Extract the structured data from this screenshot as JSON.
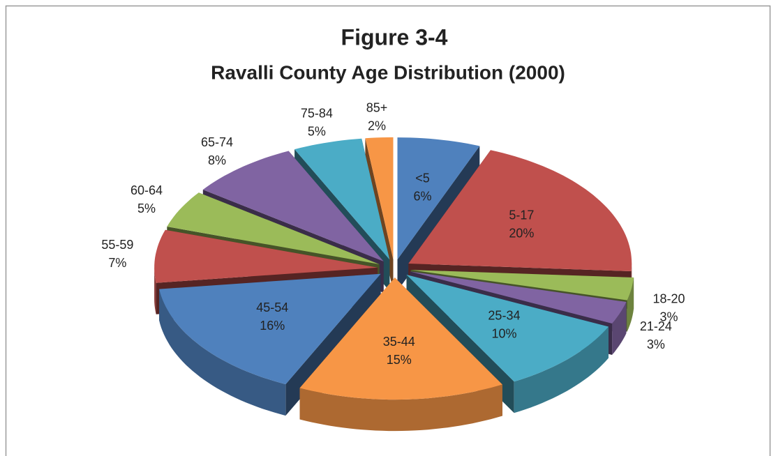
{
  "chart_data": {
    "type": "pie",
    "title": "Figure 3-4",
    "subtitle": "Ravalli County Age Distribution  (2000)",
    "categories": [
      "<5",
      "5-17",
      "18-20",
      "21-24",
      "25-34",
      "35-44",
      "45-54",
      "55-59",
      "60-64",
      "65-74",
      "75-84",
      "85+"
    ],
    "values": [
      6,
      20,
      3,
      3,
      10,
      15,
      16,
      7,
      5,
      8,
      5,
      2
    ],
    "value_labels": [
      "6%",
      "20%",
      "3%",
      "3%",
      "10%",
      "15%",
      "16%",
      "7%",
      "5%",
      "8%",
      "5%",
      "2%"
    ],
    "colors": [
      "#4f81bd",
      "#c0504d",
      "#9bbb59",
      "#8064a2",
      "#4bacc6",
      "#f79646",
      "#4f81bd",
      "#c0504d",
      "#9bbb59",
      "#8064a2",
      "#4bacc6",
      "#f79646"
    ]
  }
}
